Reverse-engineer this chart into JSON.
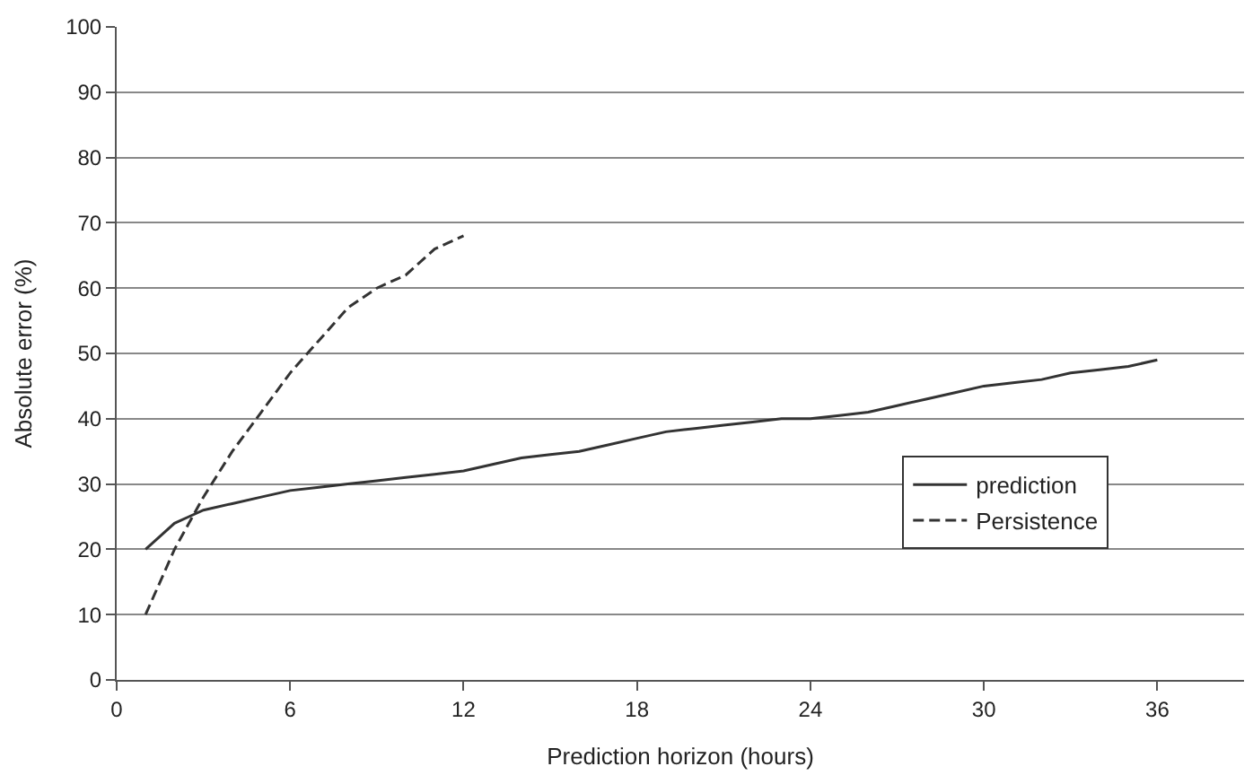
{
  "chart_data": {
    "type": "line",
    "xlabel": "Prediction horizon (hours)",
    "ylabel": "Absolute error (%)",
    "xlim": [
      0,
      39
    ],
    "xticks": [
      0,
      6,
      12,
      18,
      24,
      30,
      36
    ],
    "ylim": [
      0,
      100
    ],
    "yticks": [
      0,
      10,
      20,
      30,
      40,
      50,
      60,
      70,
      80,
      90,
      100
    ],
    "grid": "y",
    "legend": "bottom right",
    "marker": "none",
    "series": [
      {
        "name": "prediction",
        "color": "#333333",
        "line_style": "solid",
        "x": [
          1,
          1.5,
          2,
          2.5,
          3,
          4,
          5,
          6,
          7,
          8,
          9,
          10,
          11,
          12,
          13,
          14,
          15,
          16,
          17,
          18,
          19,
          20,
          21,
          22,
          23,
          24,
          25,
          26,
          27,
          28,
          29,
          30,
          31,
          32,
          33,
          34,
          35,
          36
        ],
        "values": [
          20,
          22,
          24,
          25,
          26,
          27,
          28,
          29,
          29.5,
          30,
          30.5,
          31,
          31.5,
          32,
          33,
          34,
          34.5,
          35,
          36,
          37,
          38,
          38.5,
          39,
          39.5,
          40,
          40,
          40.5,
          41,
          42,
          43,
          44,
          45,
          45.5,
          46,
          47,
          47.5,
          48,
          49
        ]
      },
      {
        "name": "Persistence",
        "color": "#333333",
        "line_style": "dashed",
        "x": [
          1,
          2,
          3,
          4,
          5,
          6,
          7,
          8,
          9,
          10,
          11,
          12
        ],
        "values": [
          10,
          20,
          28,
          35,
          41,
          47,
          52,
          57,
          60,
          62,
          66,
          68
        ]
      }
    ]
  }
}
